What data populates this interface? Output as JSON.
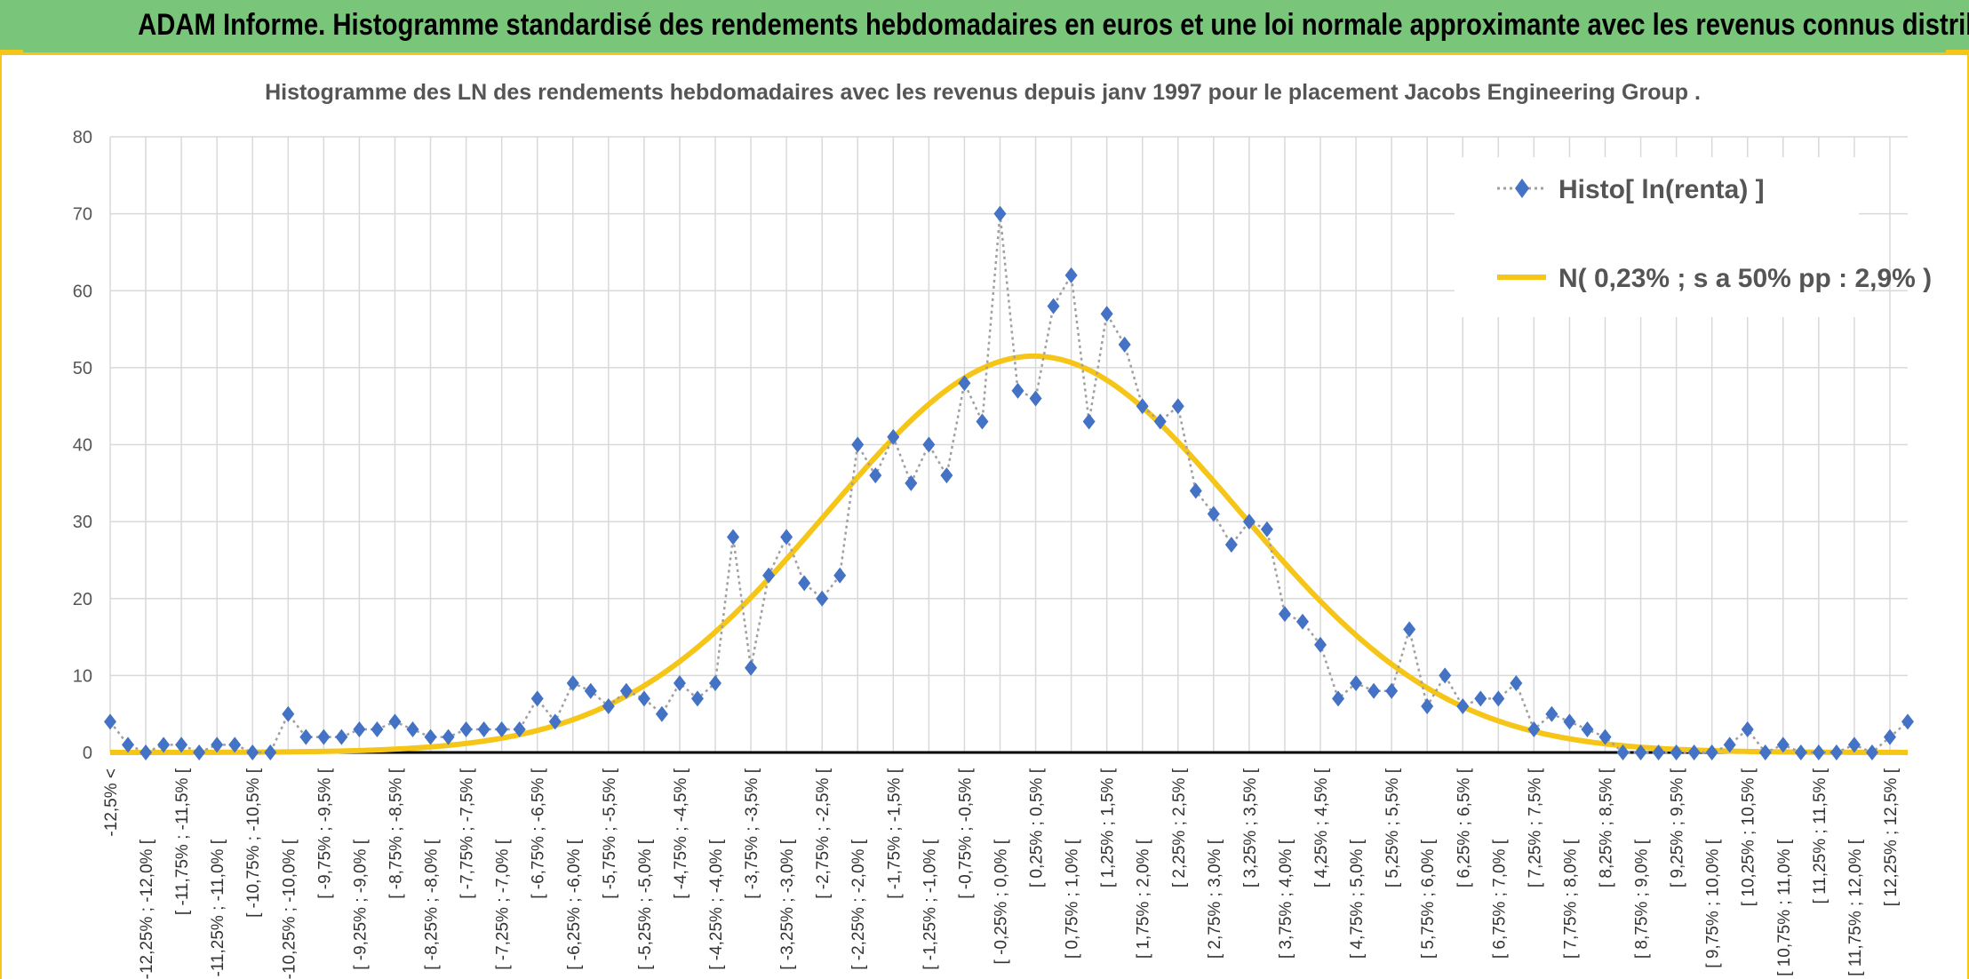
{
  "banner": {
    "title": "ADAM Informe. Histogramme standardisé des rendements hebdomadaires en euros et une loi normale approximante avec les revenus connus distribués"
  },
  "colors": {
    "banner_bg": "#79c57a",
    "accent": "#f5c518",
    "histo": "#4472c4",
    "histo_line": "#a0a0a0",
    "normal": "#f5c518",
    "grid": "#d9d9d9"
  },
  "chart_data": {
    "type": "line",
    "title": "Histogramme des LN des rendements hebdomadaires avec les revenus depuis janv 1997 pour le placement Jacobs Engineering Group .",
    "ylim": [
      0,
      80
    ],
    "yticks": [
      0,
      10,
      20,
      30,
      40,
      50,
      60,
      70,
      80
    ],
    "grid": true,
    "legend_position": "top-right",
    "x_labels": [
      "-12,5% <",
      "[ -12,25% ; -12,0% [",
      "[ -11,75% ; -11,5% [",
      "[ -11,25% ; -11,0% [",
      "[ -10,75% ; -10,5% [",
      "[ -10,25% ; -10,0% [",
      "[ -9,75% ; -9,5% [",
      "[ -9,25% ; -9,0% [",
      "[ -8,75% ; -8,5% [",
      "[ -8,25% ; -8,0% [",
      "[ -7,75% ; -7,5% [",
      "[ -7,25% ; -7,0% [",
      "[ -6,75% ; -6,5% [",
      "[ -6,25% ; -6,0% [",
      "[ -5,75% ; -5,5% [",
      "[ -5,25% ; -5,0% [",
      "[ -4,75% ; -4,5% [",
      "[ -4,25% ; -4,0% [",
      "[ -3,75% ; -3,5% [",
      "[ -3,25% ; -3,0% [",
      "[ -2,75% ; -2,5% [",
      "[ -2,25% ; -2,0% [",
      "[ -1,75% ; -1,5% [",
      "[ -1,25% ; -1,0% [",
      "[ -0,75% ; -0,5% [",
      "[ -0,25% ; 0,0% [",
      "[ 0,25% ; 0,5% [",
      "[ 0,75% ; 1,0% [",
      "[ 1,25% ; 1,5% [",
      "[ 1,75% ; 2,0% [",
      "[ 2,25% ; 2,5% [",
      "[ 2,75% ; 3,0% [",
      "[ 3,25% ; 3,5% [",
      "[ 3,75% ; 4,0% [",
      "[ 4,25% ; 4,5% [",
      "[ 4,75% ; 5,0% [",
      "[ 5,25% ; 5,5% [",
      "[ 5,75% ; 6,0% [",
      "[ 6,25% ; 6,5% [",
      "[ 6,75% ; 7,0% [",
      "[ 7,25% ; 7,5% [",
      "[ 7,75% ; 8,0% [",
      "[ 8,25% ; 8,5% [",
      "[ 8,75% ; 9,0% [",
      "[ 9,25% ; 9,5% [",
      "[ 9,75% ; 10,0% [",
      "[ 10,25% ; 10,5% [",
      "[ 10,75% ; 11,0% [",
      "[ 11,25% ; 11,5% [",
      "[ 11,75% ; 12,0% [",
      "[ 12,25% ; 12,5% ["
    ],
    "series": [
      {
        "name": "Histo[ ln(renta) ]",
        "style": "dotted-line-diamond-markers",
        "values": [
          4,
          1,
          0,
          1,
          1,
          0,
          1,
          1,
          0,
          0,
          5,
          2,
          2,
          2,
          3,
          3,
          4,
          3,
          2,
          2,
          3,
          3,
          3,
          3,
          7,
          4,
          9,
          8,
          6,
          8,
          7,
          5,
          9,
          7,
          9,
          28,
          11,
          23,
          28,
          22,
          20,
          23,
          40,
          36,
          41,
          35,
          40,
          36,
          48,
          43,
          70,
          47,
          46,
          58,
          62,
          43,
          57,
          53,
          45,
          43,
          45,
          34,
          31,
          27,
          30,
          29,
          18,
          17,
          14,
          7,
          9,
          8,
          8,
          16,
          6,
          10,
          6,
          7,
          7,
          9,
          3,
          5,
          4,
          3,
          2,
          0,
          0,
          0,
          0,
          0,
          0,
          1,
          3,
          0,
          1,
          0,
          0,
          0,
          1,
          0,
          2,
          4
        ]
      },
      {
        "name": "N( 0,23% ; s a 50% pp : 2,9% )",
        "style": "solid-smooth-line",
        "distribution": {
          "mean_index": 51.9,
          "sd_index": 11.6,
          "peak": 51.5
        }
      }
    ]
  }
}
